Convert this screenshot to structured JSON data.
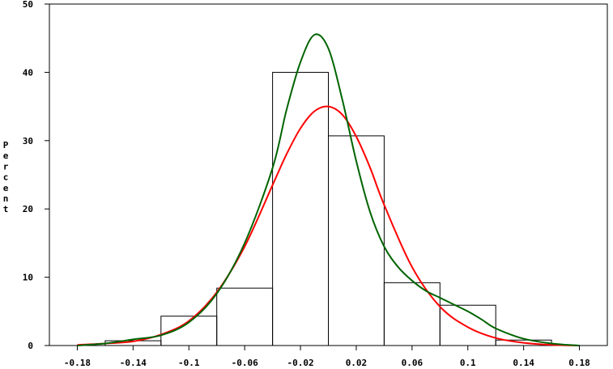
{
  "chart_data": {
    "type": "histogram",
    "title": "",
    "xlabel": "",
    "ylabel": "Percent",
    "xlim": [
      -0.2,
      0.2
    ],
    "ylim": [
      0,
      50
    ],
    "x_ticks": [
      -0.18,
      -0.14,
      -0.1,
      -0.06,
      -0.02,
      0.02,
      0.06,
      0.1,
      0.14,
      0.18
    ],
    "x_tick_labels": [
      "-0.18",
      "-0.14",
      "-0.1",
      "-0.06",
      "-0.02",
      "0.02",
      "0.06",
      "0.1",
      "0.14",
      "0.18"
    ],
    "y_ticks": [
      0,
      10,
      20,
      30,
      40,
      50
    ],
    "y_tick_labels": [
      "0",
      "10",
      "20",
      "30",
      "40",
      "50"
    ],
    "grid": false,
    "legend": "none",
    "bins": [
      {
        "x0": -0.16,
        "x1": -0.12,
        "value": 0.7
      },
      {
        "x0": -0.12,
        "x1": -0.08,
        "value": 4.3
      },
      {
        "x0": -0.08,
        "x1": -0.04,
        "value": 8.4
      },
      {
        "x0": -0.04,
        "x1": 0.0,
        "value": 40.0
      },
      {
        "x0": 0.0,
        "x1": 0.04,
        "value": 30.7
      },
      {
        "x0": 0.04,
        "x1": 0.08,
        "value": 9.2
      },
      {
        "x0": 0.08,
        "x1": 0.12,
        "value": 5.9
      },
      {
        "x0": 0.12,
        "x1": 0.16,
        "value": 0.8
      }
    ],
    "series": [
      {
        "color": "#ff0000",
        "x": [
          -0.18,
          -0.16,
          -0.14,
          -0.12,
          -0.1,
          -0.08,
          -0.06,
          -0.04,
          -0.03,
          -0.02,
          -0.01,
          0.0,
          0.01,
          0.02,
          0.03,
          0.04,
          0.06,
          0.08,
          0.1,
          0.12,
          0.14,
          0.16,
          0.18
        ],
        "y": [
          0.1,
          0.3,
          0.6,
          1.6,
          3.6,
          7.8,
          14.5,
          23.5,
          28.0,
          31.8,
          34.3,
          35.0,
          33.8,
          30.6,
          26.0,
          20.6,
          11.5,
          5.7,
          2.7,
          1.1,
          0.4,
          0.1,
          0.0
        ]
      },
      {
        "color": "#006400",
        "x": [
          -0.18,
          -0.16,
          -0.14,
          -0.12,
          -0.1,
          -0.08,
          -0.06,
          -0.04,
          -0.03,
          -0.02,
          -0.01,
          0.0,
          0.01,
          0.02,
          0.03,
          0.04,
          0.05,
          0.06,
          0.07,
          0.08,
          0.09,
          0.1,
          0.11,
          0.12,
          0.14,
          0.16,
          0.18
        ],
        "y": [
          0.0,
          0.3,
          0.9,
          1.5,
          3.4,
          7.6,
          15.0,
          26.0,
          34.5,
          41.5,
          45.5,
          43.5,
          36.0,
          27.0,
          19.5,
          14.5,
          11.5,
          9.5,
          8.0,
          7.0,
          6.0,
          5.0,
          3.8,
          2.5,
          1.0,
          0.3,
          0.0
        ]
      }
    ]
  }
}
